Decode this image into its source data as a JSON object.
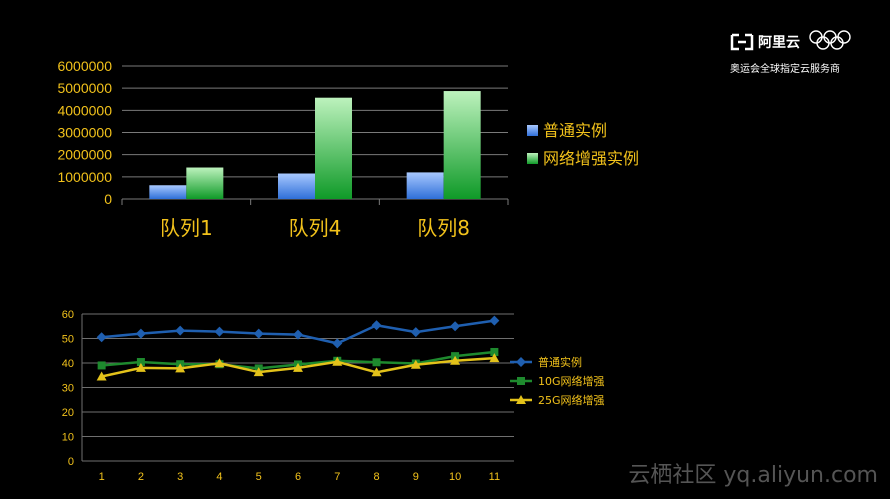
{
  "logo": {
    "name": "阿里云",
    "tagline": "奥运会全球指定云服务商"
  },
  "watermark": "云栖社区 yq.aliyun.com",
  "chart_data": [
    {
      "type": "bar",
      "categories": [
        "队列1",
        "队列4",
        "队列8"
      ],
      "series": [
        {
          "name": "普通实例",
          "values": [
            620000,
            1150000,
            1200000
          ],
          "color": "#4f86e0"
        },
        {
          "name": "网络增强实例",
          "values": [
            1420000,
            4570000,
            4870000
          ],
          "color": "#2fb84a"
        }
      ],
      "yticks": [
        "0",
        "1000000",
        "2000000",
        "3000000",
        "4000000",
        "5000000",
        "6000000"
      ],
      "ylim": [
        0,
        6000000
      ],
      "grid": true,
      "legend": "right"
    },
    {
      "type": "line",
      "categories": [
        "1",
        "2",
        "3",
        "4",
        "5",
        "6",
        "7",
        "8",
        "9",
        "10",
        "11"
      ],
      "series": [
        {
          "name": "普通实例",
          "values": [
            50.5,
            52,
            53.2,
            52.8,
            52,
            51.6,
            48,
            55.4,
            52.6,
            55,
            57.3
          ],
          "color": "#1f5fb0",
          "marker": "diamond"
        },
        {
          "name": "10G网络增强",
          "values": [
            39,
            40.4,
            39.5,
            39.5,
            37.8,
            39.4,
            40.9,
            40.3,
            39.8,
            42.8,
            44.5
          ],
          "color": "#1e8a2e",
          "marker": "square"
        },
        {
          "name": "25G网络增强",
          "values": [
            34.5,
            38,
            37.8,
            39.9,
            36.3,
            38,
            40.5,
            36.2,
            39.3,
            40.9,
            42
          ],
          "color": "#e3c21a",
          "marker": "triangle"
        }
      ],
      "yticks": [
        "0",
        "10",
        "20",
        "30",
        "40",
        "50",
        "60"
      ],
      "ylim": [
        0,
        60
      ],
      "grid": true,
      "legend": "right"
    }
  ]
}
